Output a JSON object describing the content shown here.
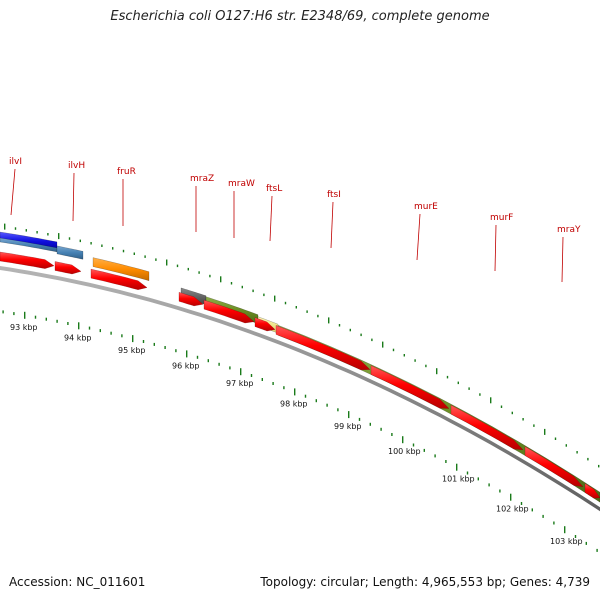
{
  "header": {
    "title": "Escherichia coli O127:H6 str. E2348/69, complete genome"
  },
  "footer": {
    "accession": "Accession: NC_011601",
    "summary": "Topology: circular; Length: 4,965,553 bp; Genes: 4,739"
  },
  "map": {
    "gene_labels": [
      "ilvI",
      "ilvH",
      "fruR",
      "mraZ",
      "mraW",
      "ftsL",
      "ftsI",
      "murE",
      "murF",
      "mraY"
    ],
    "kbp_labels": [
      "93 kbp",
      "94 kbp",
      "95 kbp",
      "96 kbp",
      "97 kbp",
      "98 kbp",
      "99 kbp",
      "100 kbp",
      "101 kbp",
      "102 kbp",
      "103 kbp"
    ],
    "colors": {
      "cds_red": "#ff0000",
      "tick_green": "#1a7a1a",
      "label_red": "#c00000",
      "operon_olive": "#6b8e23",
      "blue": "#1010e0",
      "steel_blue": "#4682b4",
      "orange": "#ff8c00",
      "dark_gray": "#666666",
      "pale_yellow": "#f0e68c",
      "backbone_gray": "#888888"
    }
  }
}
